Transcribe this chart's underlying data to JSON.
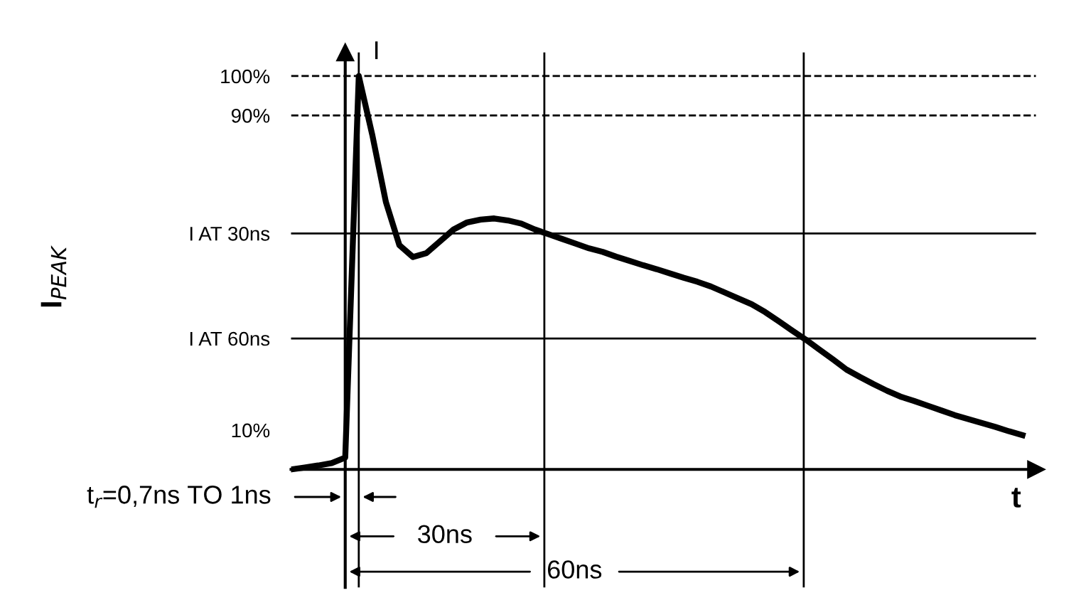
{
  "chart_data": {
    "type": "line",
    "ylabel": "I$_{PEAK}$",
    "xlabel": "t",
    "categories": [
      null,
      null,
      null,
      null,
      null,
      null,
      null,
      null,
      null,
      null,
      null,
      null,
      null,
      null,
      null,
      null,
      null,
      null,
      null,
      null,
      null,
      null,
      null,
      null,
      null,
      null,
      null,
      null,
      null,
      null,
      null,
      null,
      null,
      null,
      null,
      null,
      null,
      null,
      null,
      null,
      null,
      null,
      null,
      null,
      null,
      null,
      null,
      null,
      null,
      null,
      null,
      null,
      null,
      null,
      null
    ],
    "series": [
      {
        "color": "#000000",
        "values": [
          0,
          0.5,
          1,
          1.6,
          3,
          100,
          85,
          68,
          57,
          54,
          55,
          58,
          61,
          62.8,
          63.5,
          63.8,
          63.3,
          62.5,
          61,
          59.8,
          58.6,
          57.4,
          56.2,
          55.3,
          54.1,
          53,
          51.9,
          50.9,
          49.8,
          48.7,
          47.7,
          46.5,
          45,
          43.5,
          42,
          40,
          37.7,
          35.3,
          33,
          30.5,
          28,
          25.4,
          23.5,
          21.7,
          20,
          18.5,
          17.4,
          16.2,
          15,
          13.8,
          12.8,
          11.8,
          10.8,
          9.7,
          8.7
        ]
      }
    ],
    "ylim": [
      -30,
      106
    ],
    "yticks": [
      {
        "value": 100,
        "label": "100%"
      },
      {
        "value": 90,
        "label": "90%"
      },
      {
        "value": 60,
        "label": "I AT 30ns"
      },
      {
        "value": 33.3,
        "label": "I AT 60ns"
      },
      {
        "value": 10,
        "label": "10%"
      }
    ],
    "tick_labels": "y",
    "ref_lines": [
      {
        "axis": "y",
        "value": 100,
        "line_style": "dashed"
      },
      {
        "axis": "y",
        "value": 90,
        "line_style": "dashed"
      },
      {
        "axis": "y",
        "value": 60
      },
      {
        "axis": "y",
        "value": 33.3
      }
    ],
    "annotations": [
      "I",
      "t$_{r}$=0,7ns TO 1ns",
      "30ns",
      "60ns"
    ],
    "line_style": "solid",
    "marker": "none"
  }
}
